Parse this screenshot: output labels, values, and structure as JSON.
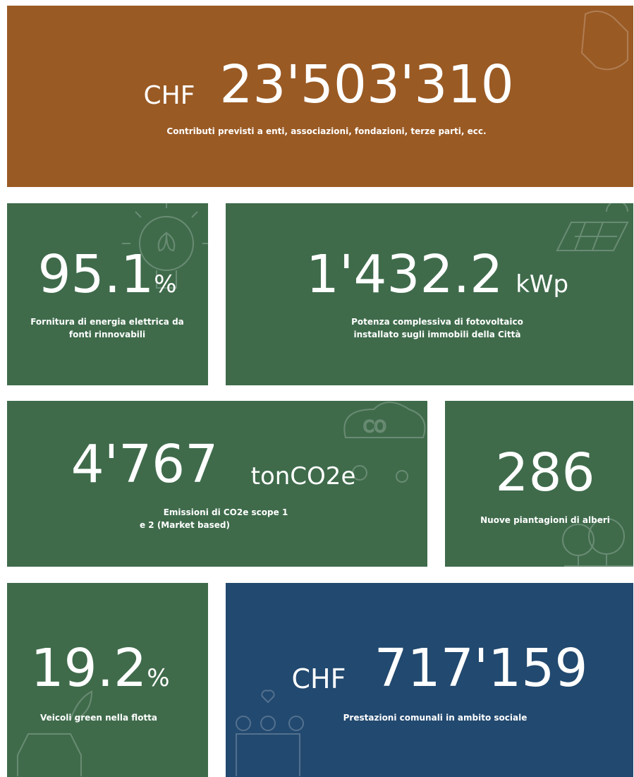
{
  "tiles": [
    {
      "prefix": "CHF",
      "value": "23'503'310",
      "caption": [
        "Contributi previsti a enti, associazioni, fondazioni, terze parti, ecc."
      ]
    },
    {
      "value": "95.1",
      "unit": "%",
      "caption": [
        "Fornitura di energia elettrica da",
        "fonti rinnovabili"
      ]
    },
    {
      "value": "1'432.2",
      "unit": "kWp",
      "caption": [
        "Potenza complessiva di fotovoltaico",
        "installato sugli immobili della Città"
      ]
    },
    {
      "value": "4'767",
      "unit": "tonCO2e",
      "caption": [
        "Emissioni di CO2e scope 1",
        "e 2 (Market based)"
      ]
    },
    {
      "value": "286",
      "caption": [
        "Nuove piantagioni di alberi"
      ]
    },
    {
      "value": "19.2",
      "unit": "%",
      "caption": [
        "Veicoli green nella flotta"
      ]
    },
    {
      "prefix": "CHF",
      "value": "717'159",
      "caption": [
        "Prestazioni comunali in ambito sociale"
      ]
    }
  ]
}
